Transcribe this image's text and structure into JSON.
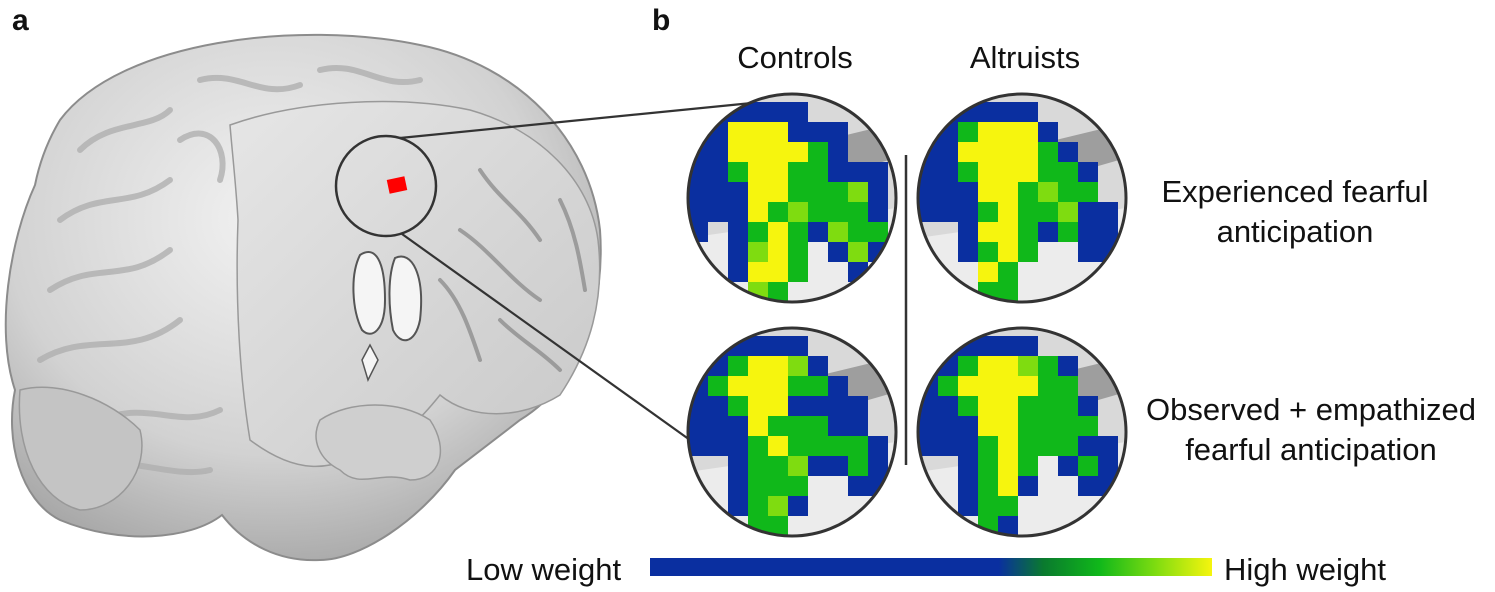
{
  "figure": {
    "panel_a_label": "a",
    "panel_b_label": "b",
    "columns": [
      "Controls",
      "Altruists"
    ],
    "rows": [
      "Experienced fearful\nanticipation",
      "Observed + empathized\nfearful anticipation"
    ],
    "colorbar": {
      "low_label": "Low weight",
      "high_label": "High weight",
      "colors": [
        "#0a2fa0",
        "#0a2fa0",
        "#0a7a2e",
        "#10b81a",
        "#7fdc10",
        "#f6f50e"
      ]
    },
    "roi_color": "#ff0000"
  }
}
